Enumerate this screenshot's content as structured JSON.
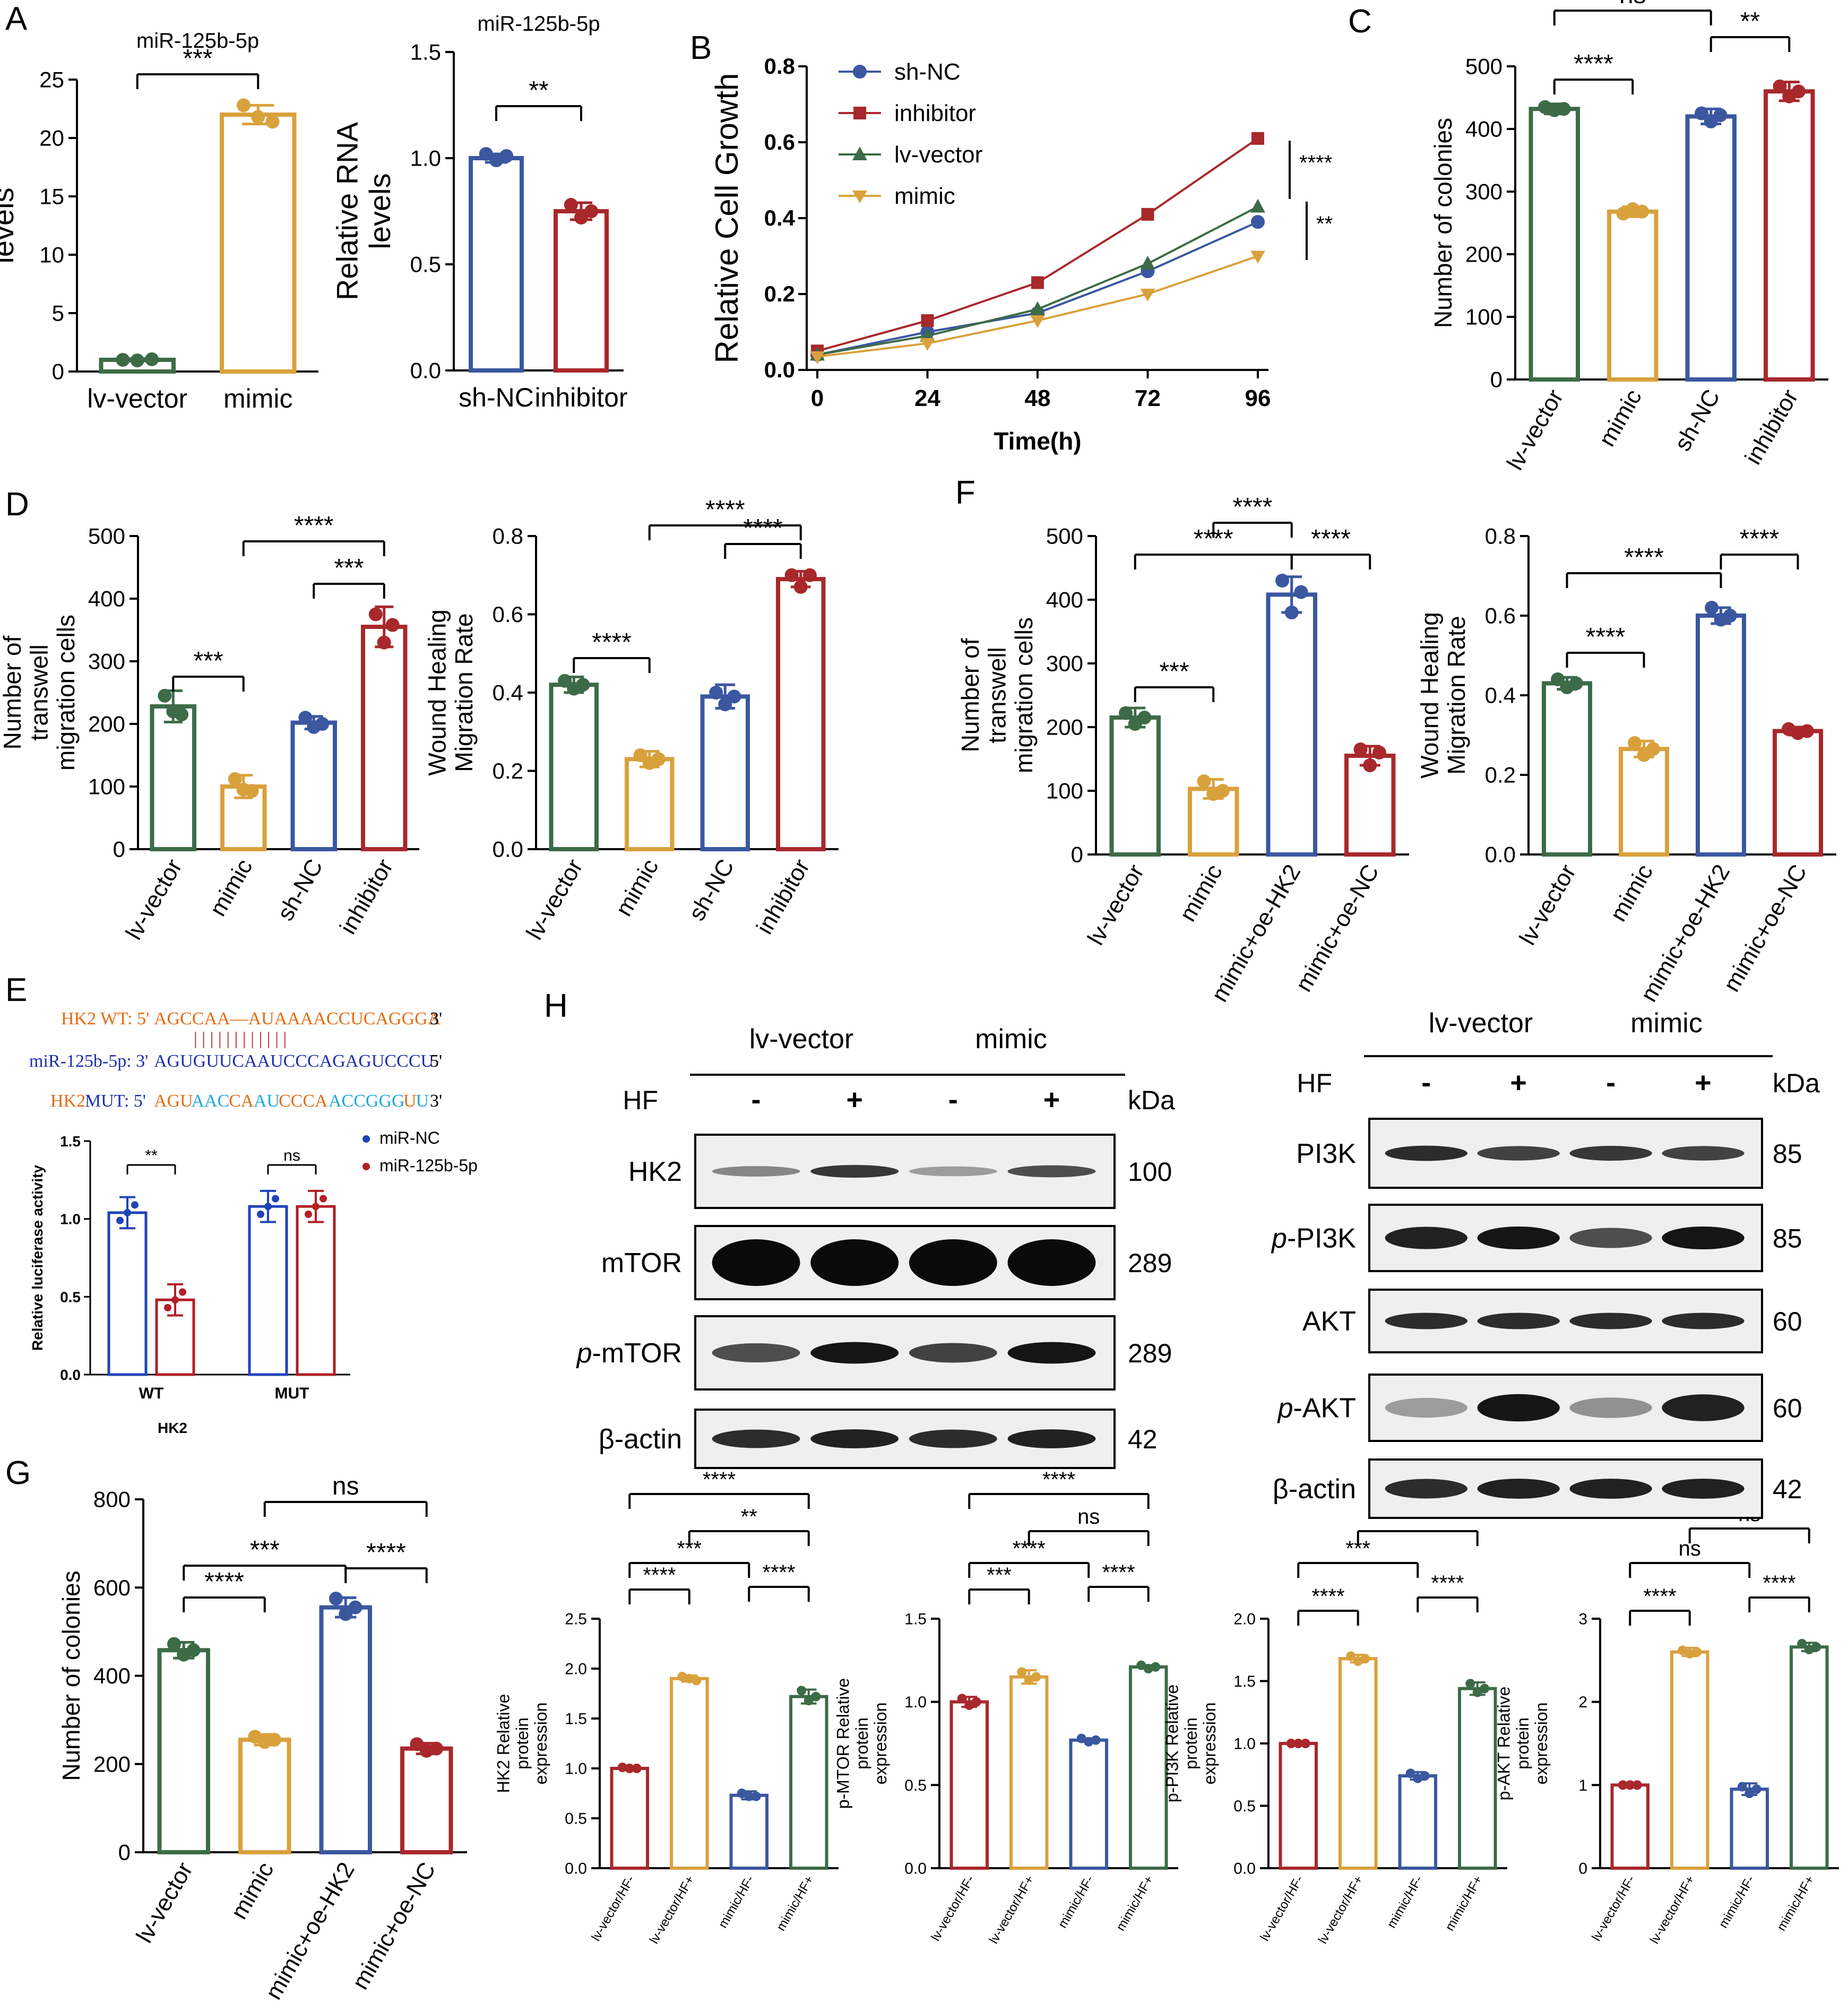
{
  "panels": {
    "A": "A",
    "B": "B",
    "C": "C",
    "D": "D",
    "E": "E",
    "F": "F",
    "G": "G",
    "H": "H"
  },
  "colors": {
    "green": "#3d6b47",
    "orange": "#d9a13c",
    "blue": "#3a57a0",
    "red": "#a8282c",
    "lred": "#b21f24",
    "lblue": "#1f43b8",
    "seq_orange": "#e36b12",
    "seq_blue": "#1c2fb0",
    "seq_cyan": "#1ea9d8",
    "seq_red": "#c81c1c"
  },
  "chart_data": [
    {
      "id": "A1",
      "type": "bar",
      "title": "miR-125b-5p",
      "ylabel": "Relative RNA  levels",
      "categories": [
        "lv-vector",
        "mimic"
      ],
      "values": [
        1.0,
        22.0
      ],
      "points": [
        [
          1.0,
          0.95,
          1.05
        ],
        [
          22.8,
          21.8,
          21.4
        ]
      ],
      "err": [
        0.1,
        0.8
      ],
      "ylim": [
        0,
        25
      ],
      "yticks": [
        0,
        5,
        10,
        15,
        20,
        25
      ],
      "yticklabels": [
        "0",
        "5",
        "10",
        "15",
        "20",
        "25"
      ],
      "colors": [
        "green",
        "orange"
      ],
      "sig": [
        [
          "lv-vector",
          "mimic",
          "***"
        ]
      ]
    },
    {
      "id": "A2",
      "type": "bar",
      "title": "miR-125b-5p",
      "ylabel": "Relative RNA  levels",
      "categories": [
        "sh-NC",
        "inhibitor"
      ],
      "values": [
        1.0,
        0.75
      ],
      "points": [
        [
          1.02,
          0.99,
          1.01
        ],
        [
          0.78,
          0.72,
          0.75
        ]
      ],
      "err": [
        0.02,
        0.04
      ],
      "ylim": [
        0,
        1.5
      ],
      "yticks": [
        0,
        0.5,
        1.0,
        1.5
      ],
      "yticklabels": [
        "0.0",
        "0.5",
        "1.0",
        "1.5"
      ],
      "colors": [
        "blue",
        "red"
      ],
      "sig": [
        [
          "sh-NC",
          "inhibitor",
          "**"
        ]
      ]
    },
    {
      "id": "B",
      "type": "line",
      "xlabel": "Time(h)",
      "ylabel": "Relative Cell Growth",
      "x": [
        0,
        24,
        48,
        72,
        96
      ],
      "ylim": [
        0,
        0.8
      ],
      "yticks": [
        0,
        0.2,
        0.4,
        0.6,
        0.8
      ],
      "yticklabels": [
        "0.0",
        "0.2",
        "0.4",
        "0.6",
        "0.8"
      ],
      "series": [
        {
          "name": "sh-NC",
          "color": "blue",
          "marker": "circle",
          "values": [
            0.04,
            0.1,
            0.15,
            0.26,
            0.39
          ]
        },
        {
          "name": "inhibitor",
          "color": "red",
          "marker": "square",
          "values": [
            0.05,
            0.13,
            0.23,
            0.41,
            0.61
          ]
        },
        {
          "name": "lv-vector",
          "color": "green",
          "marker": "triangle",
          "values": [
            0.04,
            0.09,
            0.16,
            0.28,
            0.43
          ]
        },
        {
          "name": "mimic",
          "color": "orange",
          "marker": "tridown",
          "values": [
            0.035,
            0.07,
            0.13,
            0.2,
            0.3
          ]
        }
      ],
      "sig": [
        "****",
        "**"
      ]
    },
    {
      "id": "C",
      "type": "bar",
      "ylabel": "Number of colonies",
      "categories": [
        "lv-vector",
        "mimic",
        "sh-NC",
        "inhibitor"
      ],
      "values": [
        432,
        268,
        420,
        460
      ],
      "points": [
        [
          435,
          430,
          432
        ],
        [
          265,
          272,
          268
        ],
        [
          425,
          412,
          422
        ],
        [
          468,
          452,
          460
        ]
      ],
      "err": [
        8,
        8,
        12,
        15
      ],
      "ylim": [
        0,
        500
      ],
      "yticks": [
        0,
        100,
        200,
        300,
        400,
        500
      ],
      "yticklabels": [
        "0",
        "100",
        "200",
        "300",
        "400",
        "500"
      ],
      "colors": [
        "green",
        "orange",
        "blue",
        "red"
      ],
      "rotate": true,
      "sig": [
        [
          "lv-vector",
          "mimic",
          "****"
        ],
        [
          "sh-NC",
          "inhibitor",
          "**"
        ],
        [
          "lv-vector",
          "sh-NC",
          "ns"
        ]
      ]
    },
    {
      "id": "D1",
      "type": "bar",
      "ylabel": "Number of transwell migration cells",
      "categories": [
        "lv-vector",
        "mimic",
        "sh-NC",
        "inhibitor"
      ],
      "values": [
        228,
        100,
        202,
        355
      ],
      "points": [
        [
          245,
          220,
          215
        ],
        [
          112,
          95,
          93
        ],
        [
          210,
          195,
          200
        ],
        [
          375,
          330,
          358
        ]
      ],
      "err": [
        25,
        18,
        10,
        32
      ],
      "ylim": [
        0,
        500
      ],
      "yticks": [
        0,
        100,
        200,
        300,
        400,
        500
      ],
      "yticklabels": [
        "0",
        "100",
        "200",
        "300",
        "400",
        "500"
      ],
      "colors": [
        "green",
        "orange",
        "blue",
        "red"
      ],
      "rotate": true,
      "sig": [
        [
          "lv-vector",
          "mimic",
          "***"
        ],
        [
          "sh-NC",
          "inhibitor",
          "***"
        ],
        [
          "mimic",
          "inhibitor",
          "****"
        ]
      ]
    },
    {
      "id": "D2",
      "type": "bar",
      "ylabel": "Wound Healing Migration Rate",
      "categories": [
        "lv-vector",
        "mimic",
        "sh-NC",
        "inhibitor"
      ],
      "values": [
        0.42,
        0.23,
        0.39,
        0.69
      ],
      "points": [
        [
          0.43,
          0.41,
          0.42
        ],
        [
          0.24,
          0.22,
          0.23
        ],
        [
          0.4,
          0.37,
          0.39
        ],
        [
          0.7,
          0.67,
          0.7
        ]
      ],
      "err": [
        0.02,
        0.02,
        0.03,
        0.02
      ],
      "ylim": [
        0,
        0.8
      ],
      "yticks": [
        0,
        0.2,
        0.4,
        0.6,
        0.8
      ],
      "yticklabels": [
        "0.0",
        "0.2",
        "0.4",
        "0.6",
        "0.8"
      ],
      "colors": [
        "green",
        "orange",
        "blue",
        "red"
      ],
      "rotate": true,
      "sig": [
        [
          "lv-vector",
          "mimic",
          "****"
        ],
        [
          "sh-NC",
          "inhibitor",
          "****"
        ],
        [
          "mimic",
          "inhibitor",
          "****"
        ]
      ]
    },
    {
      "id": "F1",
      "type": "bar",
      "ylabel": "Number of transwell migration cells",
      "categories": [
        "lv-vector",
        "mimic",
        "mimic+oe-HK2",
        "mimic+oe-NC"
      ],
      "values": [
        215,
        103,
        408,
        155
      ],
      "points": [
        [
          222,
          205,
          215
        ],
        [
          115,
          95,
          100
        ],
        [
          430,
          380,
          412
        ],
        [
          165,
          140,
          160
        ]
      ],
      "err": [
        15,
        15,
        28,
        15
      ],
      "ylim": [
        0,
        500
      ],
      "yticks": [
        0,
        100,
        200,
        300,
        400,
        500
      ],
      "yticklabels": [
        "0",
        "100",
        "200",
        "300",
        "400",
        "500"
      ],
      "colors": [
        "green",
        "orange",
        "blue",
        "red"
      ],
      "rotate": true,
      "sig": [
        [
          "lv-vector",
          "mimic",
          "***"
        ],
        [
          "mimic",
          "mimic+oe-HK2",
          "****"
        ],
        [
          "mimic+oe-HK2",
          "mimic+oe-NC",
          "****"
        ],
        [
          "lv-vector",
          "mimic+oe-HK2",
          "****"
        ]
      ]
    },
    {
      "id": "F2",
      "type": "bar",
      "ylabel": "Wound Healing Migration Rate",
      "categories": [
        "lv-vector",
        "mimic",
        "mimic+oe-HK2",
        "mimic+oe-NC"
      ],
      "values": [
        0.43,
        0.265,
        0.6,
        0.31
      ],
      "points": [
        [
          0.44,
          0.42,
          0.43
        ],
        [
          0.28,
          0.25,
          0.265
        ],
        [
          0.62,
          0.59,
          0.6
        ],
        [
          0.315,
          0.305,
          0.31
        ]
      ],
      "err": [
        0.015,
        0.02,
        0.02,
        0.01
      ],
      "ylim": [
        0,
        0.8
      ],
      "yticks": [
        0,
        0.2,
        0.4,
        0.6,
        0.8
      ],
      "yticklabels": [
        "0.0",
        "0.2",
        "0.4",
        "0.6",
        "0.8"
      ],
      "colors": [
        "green",
        "orange",
        "blue",
        "red"
      ],
      "rotate": true,
      "sig": [
        [
          "lv-vector",
          "mimic",
          "****"
        ],
        [
          "mimic+oe-HK2",
          "mimic+oe-NC",
          "****"
        ],
        [
          "lv-vector",
          "mimic+oe-HK2",
          "****"
        ]
      ]
    },
    {
      "id": "E",
      "type": "bar",
      "xlabel": "HK2",
      "ylabel": "Relative luciferase activity",
      "groups": [
        "WT",
        "MUT"
      ],
      "series": [
        {
          "name": "miR-NC",
          "color": "lblue",
          "values": [
            1.04,
            1.08
          ]
        },
        {
          "name": "miR-125b-5p",
          "color": "lred",
          "values": [
            0.48,
            1.08
          ]
        }
      ],
      "ylim": [
        0,
        1.5
      ],
      "yticks": [
        0,
        0.5,
        1.0,
        1.5
      ],
      "yticklabels": [
        "0.0",
        "0.5",
        "1.0",
        "1.5"
      ],
      "sig": [
        "**",
        "ns"
      ]
    },
    {
      "id": "G",
      "type": "bar",
      "ylabel": "Number of colonies",
      "categories": [
        "lv-vector",
        "mimic",
        "mimic+oe-HK2",
        "mimic+oe-NC"
      ],
      "values": [
        458,
        255,
        555,
        235
      ],
      "points": [
        [
          472,
          448,
          458
        ],
        [
          262,
          250,
          255
        ],
        [
          575,
          540,
          555
        ],
        [
          245,
          230,
          235
        ]
      ],
      "err": [
        18,
        12,
        22,
        12
      ],
      "ylim": [
        0,
        800
      ],
      "yticks": [
        0,
        200,
        400,
        600,
        800
      ],
      "yticklabels": [
        "0",
        "200",
        "400",
        "600",
        "800"
      ],
      "colors": [
        "green",
        "orange",
        "blue",
        "red"
      ],
      "rotate": true,
      "sig": [
        [
          "lv-vector",
          "mimic",
          "****"
        ],
        [
          "mimic+oe-HK2",
          "mimic+oe-NC",
          "****"
        ],
        [
          "lv-vector",
          "mimic+oe-HK2",
          "***"
        ],
        [
          "mimic",
          "mimic+oe-NC",
          "ns"
        ]
      ]
    },
    {
      "id": "H1",
      "type": "bar",
      "ylabel": "HK2 Relative protein expression",
      "categories": [
        "lv-vector/HF-",
        "lv-vector/HF+",
        "mimic/HF-",
        "mimic/HF+"
      ],
      "values": [
        1.0,
        1.9,
        0.73,
        1.72
      ],
      "points": [
        [
          1.01,
          1.0,
          1.0
        ],
        [
          1.92,
          1.9,
          1.88
        ],
        [
          0.75,
          0.72,
          0.72
        ],
        [
          1.78,
          1.68,
          1.72
        ]
      ],
      "err": [
        0.01,
        0.03,
        0.04,
        0.07
      ],
      "ylim": [
        0,
        2.5
      ],
      "yticks": [
        0,
        0.5,
        1.0,
        1.5,
        2.0,
        2.5
      ],
      "yticklabels": [
        "0.0",
        "0.5",
        "1.0",
        "1.5",
        "2.0",
        "2.5"
      ],
      "colors": [
        "red",
        "orange",
        "blue",
        "green"
      ],
      "rotate": true,
      "small": true,
      "sig": [
        [
          "lv-vector/HF-",
          "lv-vector/HF+",
          "****"
        ],
        [
          "mimic/HF-",
          "mimic/HF+",
          "****"
        ],
        [
          "lv-vector/HF-",
          "mimic/HF-",
          "***"
        ],
        [
          "lv-vector/HF+",
          "mimic/HF+",
          "**"
        ],
        [
          "lv-vector/HF-",
          "mimic/HF+",
          "****"
        ]
      ]
    },
    {
      "id": "H2",
      "type": "bar",
      "ylabel": "p-MTOR Relative protein expression",
      "categories": [
        "lv-vector/HF-",
        "lv-vector/HF+",
        "mimic/HF-",
        "mimic/HF+"
      ],
      "values": [
        1.0,
        1.15,
        0.77,
        1.21
      ],
      "points": [
        [
          1.02,
          0.98,
          1.0
        ],
        [
          1.18,
          1.13,
          1.15
        ],
        [
          0.78,
          0.76,
          0.77
        ],
        [
          1.22,
          1.2,
          1.21
        ]
      ],
      "err": [
        0.03,
        0.04,
        0.01,
        0.01
      ],
      "ylim": [
        0,
        1.5
      ],
      "yticks": [
        0,
        0.5,
        1.0,
        1.5
      ],
      "yticklabels": [
        "0.0",
        "0.5",
        "1.0",
        "1.5"
      ],
      "colors": [
        "red",
        "orange",
        "blue",
        "green"
      ],
      "rotate": true,
      "small": true,
      "sig": [
        [
          "lv-vector/HF-",
          "lv-vector/HF+",
          "***"
        ],
        [
          "mimic/HF-",
          "mimic/HF+",
          "****"
        ],
        [
          "lv-vector/HF-",
          "mimic/HF-",
          "****"
        ],
        [
          "lv-vector/HF+",
          "mimic/HF+",
          "ns"
        ],
        [
          "lv-vector/HF-",
          "mimic/HF+",
          "****"
        ]
      ]
    },
    {
      "id": "H3",
      "type": "bar",
      "ylabel": "p-PI3K Relative protein expression",
      "categories": [
        "lv-vector/HF-",
        "lv-vector/HF+",
        "mimic/HF-",
        "mimic/HF+"
      ],
      "values": [
        1.0,
        1.68,
        0.74,
        1.44
      ],
      "points": [
        [
          1.0,
          1.0,
          1.0
        ],
        [
          1.7,
          1.66,
          1.68
        ],
        [
          0.76,
          0.72,
          0.74
        ],
        [
          1.48,
          1.41,
          1.44
        ]
      ],
      "err": [
        0.01,
        0.03,
        0.03,
        0.05
      ],
      "ylim": [
        0,
        2.0
      ],
      "yticks": [
        0,
        0.5,
        1.0,
        1.5,
        2.0
      ],
      "yticklabels": [
        "0.0",
        "0.5",
        "1.0",
        "1.5",
        "2.0"
      ],
      "colors": [
        "red",
        "orange",
        "blue",
        "green"
      ],
      "rotate": true,
      "small": true,
      "sig": [
        [
          "lv-vector/HF-",
          "lv-vector/HF+",
          "****"
        ],
        [
          "mimic/HF-",
          "mimic/HF+",
          "****"
        ],
        [
          "lv-vector/HF-",
          "mimic/HF-",
          "***"
        ],
        [
          "lv-vector/HF+",
          "mimic/HF+",
          "***"
        ]
      ]
    },
    {
      "id": "H4",
      "type": "bar",
      "ylabel": "p-AKT Relative protein expression",
      "categories": [
        "lv-vector/HF-",
        "lv-vector/HF+",
        "mimic/HF-",
        "mimic/HF+"
      ],
      "values": [
        1.0,
        2.6,
        0.95,
        2.66
      ],
      "points": [
        [
          1.0,
          1.0,
          1.0
        ],
        [
          2.62,
          2.58,
          2.6
        ],
        [
          0.98,
          0.9,
          0.95
        ],
        [
          2.7,
          2.63,
          2.66
        ]
      ],
      "err": [
        0.01,
        0.05,
        0.07,
        0.05
      ],
      "ylim": [
        0,
        3
      ],
      "yticks": [
        0,
        1,
        2,
        3
      ],
      "yticklabels": [
        "0",
        "1",
        "2",
        "3"
      ],
      "colors": [
        "red",
        "orange",
        "blue",
        "green"
      ],
      "rotate": true,
      "small": true,
      "sig": [
        [
          "lv-vector/HF-",
          "lv-vector/HF+",
          "****"
        ],
        [
          "mimic/HF-",
          "mimic/HF+",
          "****"
        ],
        [
          "lv-vector/HF-",
          "mimic/HF-",
          "ns"
        ],
        [
          "lv-vector/HF+",
          "mimic/HF+",
          "ns"
        ]
      ]
    }
  ],
  "sequences": {
    "wt_label": "HK2 WT: 5'",
    "wt_seq": "AGCCAA—AUAAAACCUCAGGGA",
    "wt_end": "3'",
    "pairs": "| | |   |  |     | | | | | |  |",
    "mir_label": "miR-125b-5p: 3'",
    "mir_seq": "AGUGUUCAAUCCCAGAGUCCCU",
    "mir_end": "5'",
    "mut_label": "HK2",
    "mut_label2": "MUT: 5'",
    "mut_parts": [
      "AGU",
      "AAC",
      "CA",
      "AU",
      "CCCA",
      "ACCGGG",
      "U",
      "U"
    ],
    "mut_end": "3'"
  },
  "blots": {
    "left": {
      "group1": "lv-vector",
      "group2": "mimic",
      "hf_label": "HF",
      "kda": "kDa",
      "hf": [
        "-",
        "+",
        "-",
        "+"
      ],
      "rows": [
        {
          "name": "HK2",
          "kda": "100"
        },
        {
          "name": "mTOR",
          "kda": "289"
        },
        {
          "prefix": "p",
          "name": "-mTOR",
          "kda": "289"
        },
        {
          "name": "β-actin",
          "kda": "42"
        }
      ]
    },
    "right": {
      "group1": "lv-vector",
      "group2": "mimic",
      "hf_label": "HF",
      "kda": "kDa",
      "hf": [
        "-",
        "+",
        "-",
        "+"
      ],
      "rows": [
        {
          "name": "PI3K",
          "kda": "85"
        },
        {
          "prefix": "p",
          "name": "-PI3K",
          "kda": "85"
        },
        {
          "name": "AKT",
          "kda": "60"
        },
        {
          "prefix": "p",
          "name": "-AKT",
          "kda": "60"
        },
        {
          "name": "β-actin",
          "kda": "42"
        }
      ]
    }
  }
}
